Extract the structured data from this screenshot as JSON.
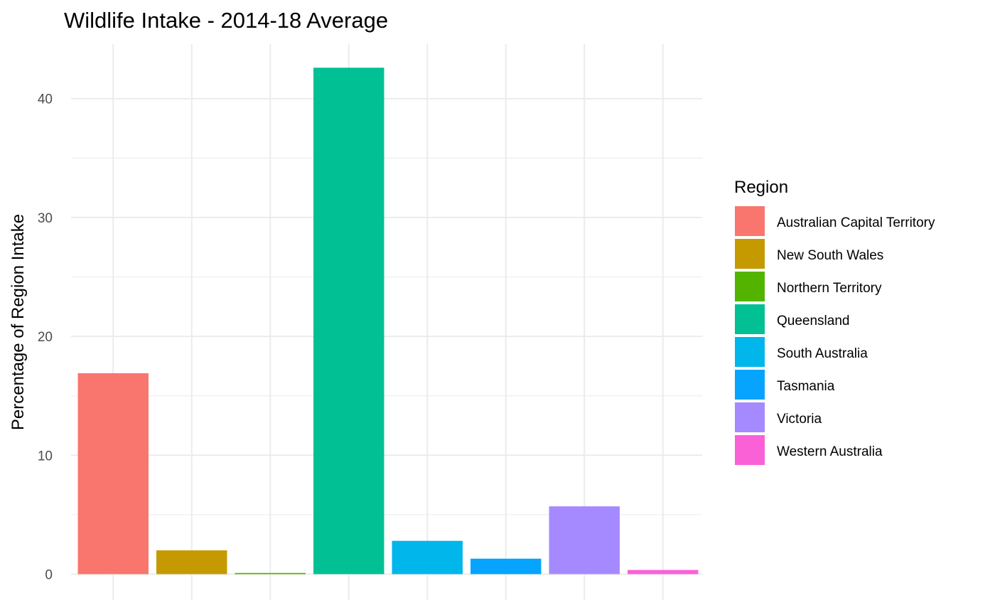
{
  "chart_data": {
    "type": "bar",
    "title": "Wildlife Intake - 2014-18 Average",
    "xlabel": "",
    "ylabel": "Percentage of Region Intake",
    "ylim": [
      0,
      44
    ],
    "yticks": [
      0,
      10,
      20,
      30,
      40
    ],
    "show_x_tick_labels": false,
    "grid": true,
    "legend": {
      "title": "Region",
      "placement": "right"
    },
    "categories": [
      "Australian Capital Territory",
      "New South Wales",
      "Northern Territory",
      "Queensland",
      "South Australia",
      "Tasmania",
      "Victoria",
      "Western Australia"
    ],
    "values": [
      16.9,
      2.0,
      0.1,
      42.6,
      2.8,
      1.3,
      5.7,
      0.35
    ],
    "colors": [
      "#F8766D",
      "#C49A00",
      "#53B400",
      "#00C094",
      "#00B6EB",
      "#06A4FF",
      "#A58AFF",
      "#FB61D7"
    ]
  }
}
